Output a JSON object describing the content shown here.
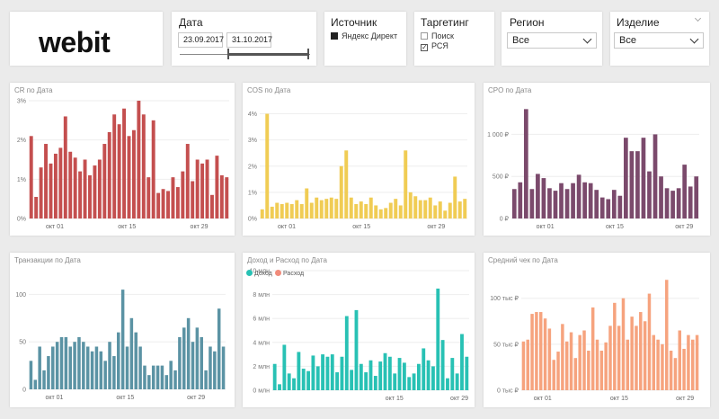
{
  "header": {
    "logo": "webit",
    "date": {
      "title": "Дата",
      "start": "23.09.2017",
      "end": "31.10.2017"
    },
    "source": {
      "title": "Источник",
      "options": [
        {
          "label": "Яндекс Директ",
          "checked": true
        }
      ]
    },
    "targeting": {
      "title": "Таргетинг",
      "options": [
        {
          "label": "Поиск",
          "checked": false
        },
        {
          "label": "РСЯ",
          "checked": true
        }
      ]
    },
    "region": {
      "title": "Регион",
      "value": "Все"
    },
    "product": {
      "title": "Изделие",
      "value": "Все"
    }
  },
  "colors": {
    "cr": "#c44f4f",
    "cos": "#f0cc54",
    "cpo": "#7b4a6c",
    "transactions": "#5b93a4",
    "income": "#28c1b4",
    "expense": "#f18b7b",
    "avg": "#f6a37e",
    "grid": "#eeeeee"
  },
  "chart_data": [
    {
      "id": "cr",
      "type": "bar",
      "title": "CR по Дата",
      "x_ticks": [
        "окт 01",
        "окт 15",
        "окт 29"
      ],
      "y_ticks": [
        "0%",
        "1%",
        "2%",
        "3%"
      ],
      "ylim": [
        0,
        3
      ],
      "values": [
        2.1,
        0.55,
        1.3,
        1.9,
        1.4,
        1.65,
        1.8,
        2.6,
        1.7,
        1.55,
        1.2,
        1.5,
        1.1,
        1.35,
        1.5,
        1.9,
        2.2,
        2.65,
        2.4,
        2.8,
        2.1,
        2.25,
        3.0,
        2.65,
        1.05,
        2.5,
        0.65,
        0.75,
        0.7,
        1.05,
        0.8,
        1.2,
        1.9,
        0.95,
        1.5,
        1.4,
        1.5,
        0.6,
        1.6,
        1.1,
        1.05
      ]
    },
    {
      "id": "cos",
      "type": "bar",
      "title": "COS по Дата",
      "x_ticks": [
        "окт 01",
        "окт 15",
        "окт 29"
      ],
      "y_ticks": [
        "0%",
        "1%",
        "2%",
        "3%",
        "4%"
      ],
      "ylim": [
        0,
        4.5
      ],
      "values": [
        0.35,
        4.0,
        0.45,
        0.6,
        0.55,
        0.6,
        0.55,
        0.7,
        0.55,
        1.15,
        0.6,
        0.8,
        0.7,
        0.75,
        0.8,
        0.75,
        2.0,
        2.6,
        0.8,
        0.55,
        0.65,
        0.55,
        0.8,
        0.5,
        0.35,
        0.4,
        0.6,
        0.75,
        0.5,
        2.6,
        1.0,
        0.85,
        0.7,
        0.7,
        0.8,
        0.5,
        0.65,
        0.3,
        0.6,
        1.6,
        0.65,
        0.75
      ]
    },
    {
      "id": "cpo",
      "type": "bar",
      "title": "CPO по Дата",
      "x_ticks": [
        "окт 01",
        "окт 15",
        "окт 29"
      ],
      "y_ticks": [
        "0 ₽",
        "500 ₽",
        "1 000 ₽"
      ],
      "ylim": [
        0,
        1400
      ],
      "values": [
        350,
        430,
        1300,
        350,
        530,
        480,
        360,
        330,
        420,
        350,
        420,
        520,
        430,
        420,
        340,
        250,
        230,
        340,
        270,
        960,
        800,
        800,
        960,
        560,
        1000,
        500,
        360,
        330,
        360,
        640,
        380,
        500
      ]
    },
    {
      "id": "transactions",
      "type": "bar",
      "title": "Транзакции по Дата",
      "x_ticks": [
        "окт 01",
        "окт 15",
        "окт 29"
      ],
      "y_ticks": [
        "0",
        "50",
        "100"
      ],
      "ylim": [
        0,
        125
      ],
      "values": [
        30,
        10,
        45,
        20,
        35,
        45,
        50,
        55,
        55,
        45,
        50,
        55,
        50,
        45,
        40,
        45,
        40,
        30,
        50,
        35,
        60,
        105,
        45,
        75,
        60,
        45,
        25,
        15,
        25,
        25,
        25,
        15,
        30,
        20,
        55,
        65,
        75,
        50,
        65,
        55,
        20,
        45,
        40,
        85,
        45
      ]
    },
    {
      "id": "income_expense",
      "type": "bar",
      "title": "Доход и Расход по Дата",
      "legend": [
        {
          "name": "Доход",
          "color": "#28c1b4"
        },
        {
          "name": "Расход",
          "color": "#f18b7b"
        }
      ],
      "x_ticks": [
        "окт 15",
        "окт 29"
      ],
      "y_ticks": [
        "0 млн",
        "2 млн",
        "4 млн",
        "6 млн",
        "8 млн",
        "10 млн"
      ],
      "ylim": [
        0,
        10
      ],
      "series": [
        {
          "name": "Доход",
          "values": [
            2.2,
            0.5,
            3.8,
            1.4,
            1.0,
            3.2,
            1.8,
            1.6,
            2.9,
            2.0,
            3.0,
            2.8,
            3.0,
            1.5,
            2.8,
            6.2,
            1.7,
            6.7,
            2.2,
            1.5,
            2.5,
            1.2,
            2.4,
            3.1,
            2.8,
            1.4,
            2.7,
            2.3,
            1.1,
            1.4,
            2.2,
            3.5,
            2.5,
            2.0,
            8.5,
            4.2,
            1.0,
            2.7,
            1.4,
            4.7,
            2.8
          ]
        },
        {
          "name": "Расход",
          "values": []
        }
      ]
    },
    {
      "id": "avg_check",
      "type": "bar",
      "title": "Средний чек по Дата",
      "x_ticks": [
        "окт 01",
        "окт 15",
        "окт 29"
      ],
      "y_ticks": [
        "0 тыс ₽",
        "50 тыс ₽",
        "100 тыс ₽"
      ],
      "ylim": [
        0,
        130
      ],
      "values": [
        53,
        55,
        83,
        85,
        85,
        78,
        67,
        33,
        42,
        72,
        53,
        63,
        35,
        60,
        65,
        43,
        90,
        55,
        43,
        52,
        70,
        95,
        70,
        100,
        55,
        80,
        70,
        85,
        75,
        105,
        60,
        55,
        50,
        120,
        43,
        35,
        65,
        45,
        60,
        55,
        60
      ]
    }
  ]
}
